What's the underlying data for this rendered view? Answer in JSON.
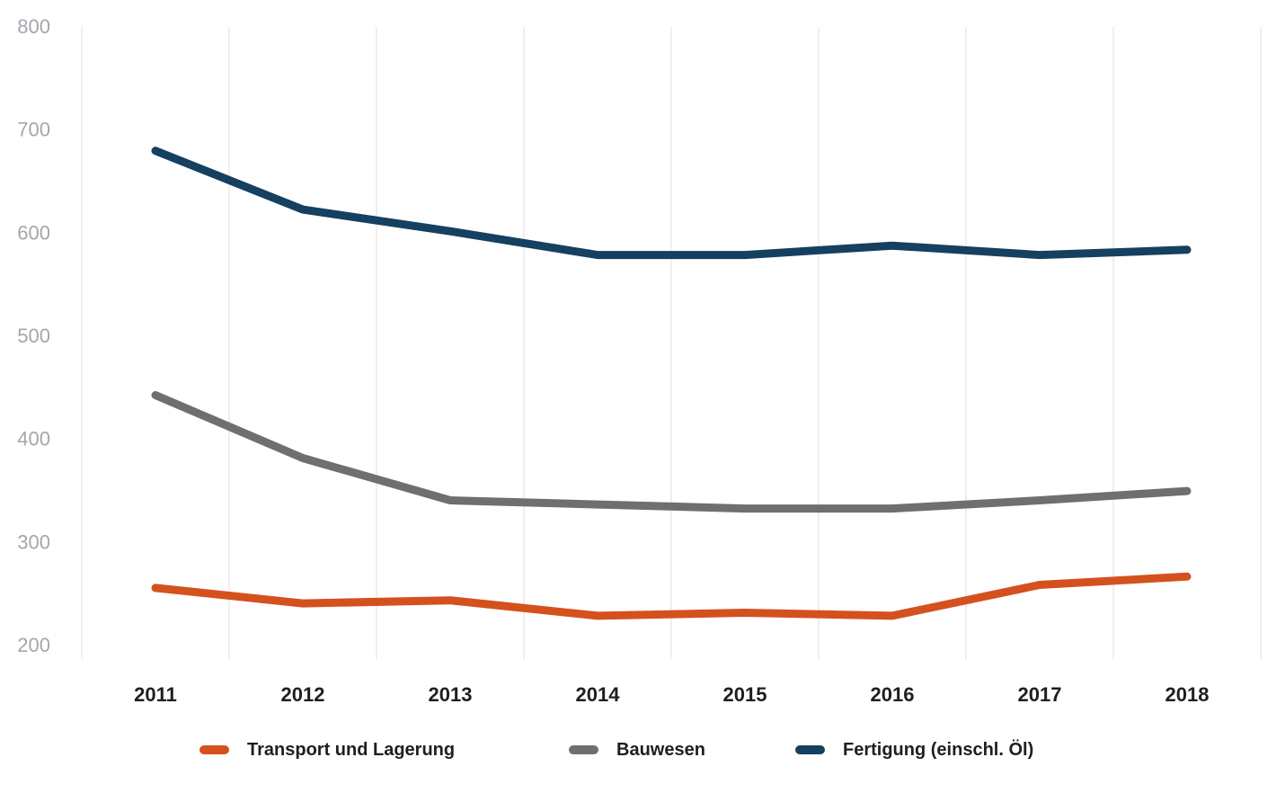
{
  "chart_data": {
    "type": "line",
    "title": "",
    "xlabel": "",
    "ylabel": "",
    "categories": [
      "2011",
      "2012",
      "2013",
      "2014",
      "2015",
      "2016",
      "2017",
      "2018"
    ],
    "series": [
      {
        "name": "Transport und Lagerung",
        "color": "#d4511e",
        "values": [
          255,
          240,
          243,
          228,
          231,
          228,
          258,
          266
        ]
      },
      {
        "name": "Bauwesen",
        "color": "#6f6f6f",
        "values": [
          442,
          381,
          340,
          336,
          332,
          332,
          340,
          349
        ]
      },
      {
        "name": "Fertigung (einschl. Öl)",
        "color": "#15405f",
        "values": [
          679,
          622,
          601,
          578,
          578,
          587,
          578,
          583
        ]
      }
    ],
    "ylim": [
      200,
      800
    ],
    "yticks": [
      800,
      700,
      600,
      500,
      400,
      300,
      200
    ],
    "grid": "vertical-only",
    "legend_position": "bottom"
  },
  "colors": {
    "background": "#ffffff",
    "gridline": "#e9e9eb",
    "y_tick_label": "#a3a7ac",
    "x_tick_label": "#1f1f1f",
    "legend_text": "#1f1f1f"
  }
}
